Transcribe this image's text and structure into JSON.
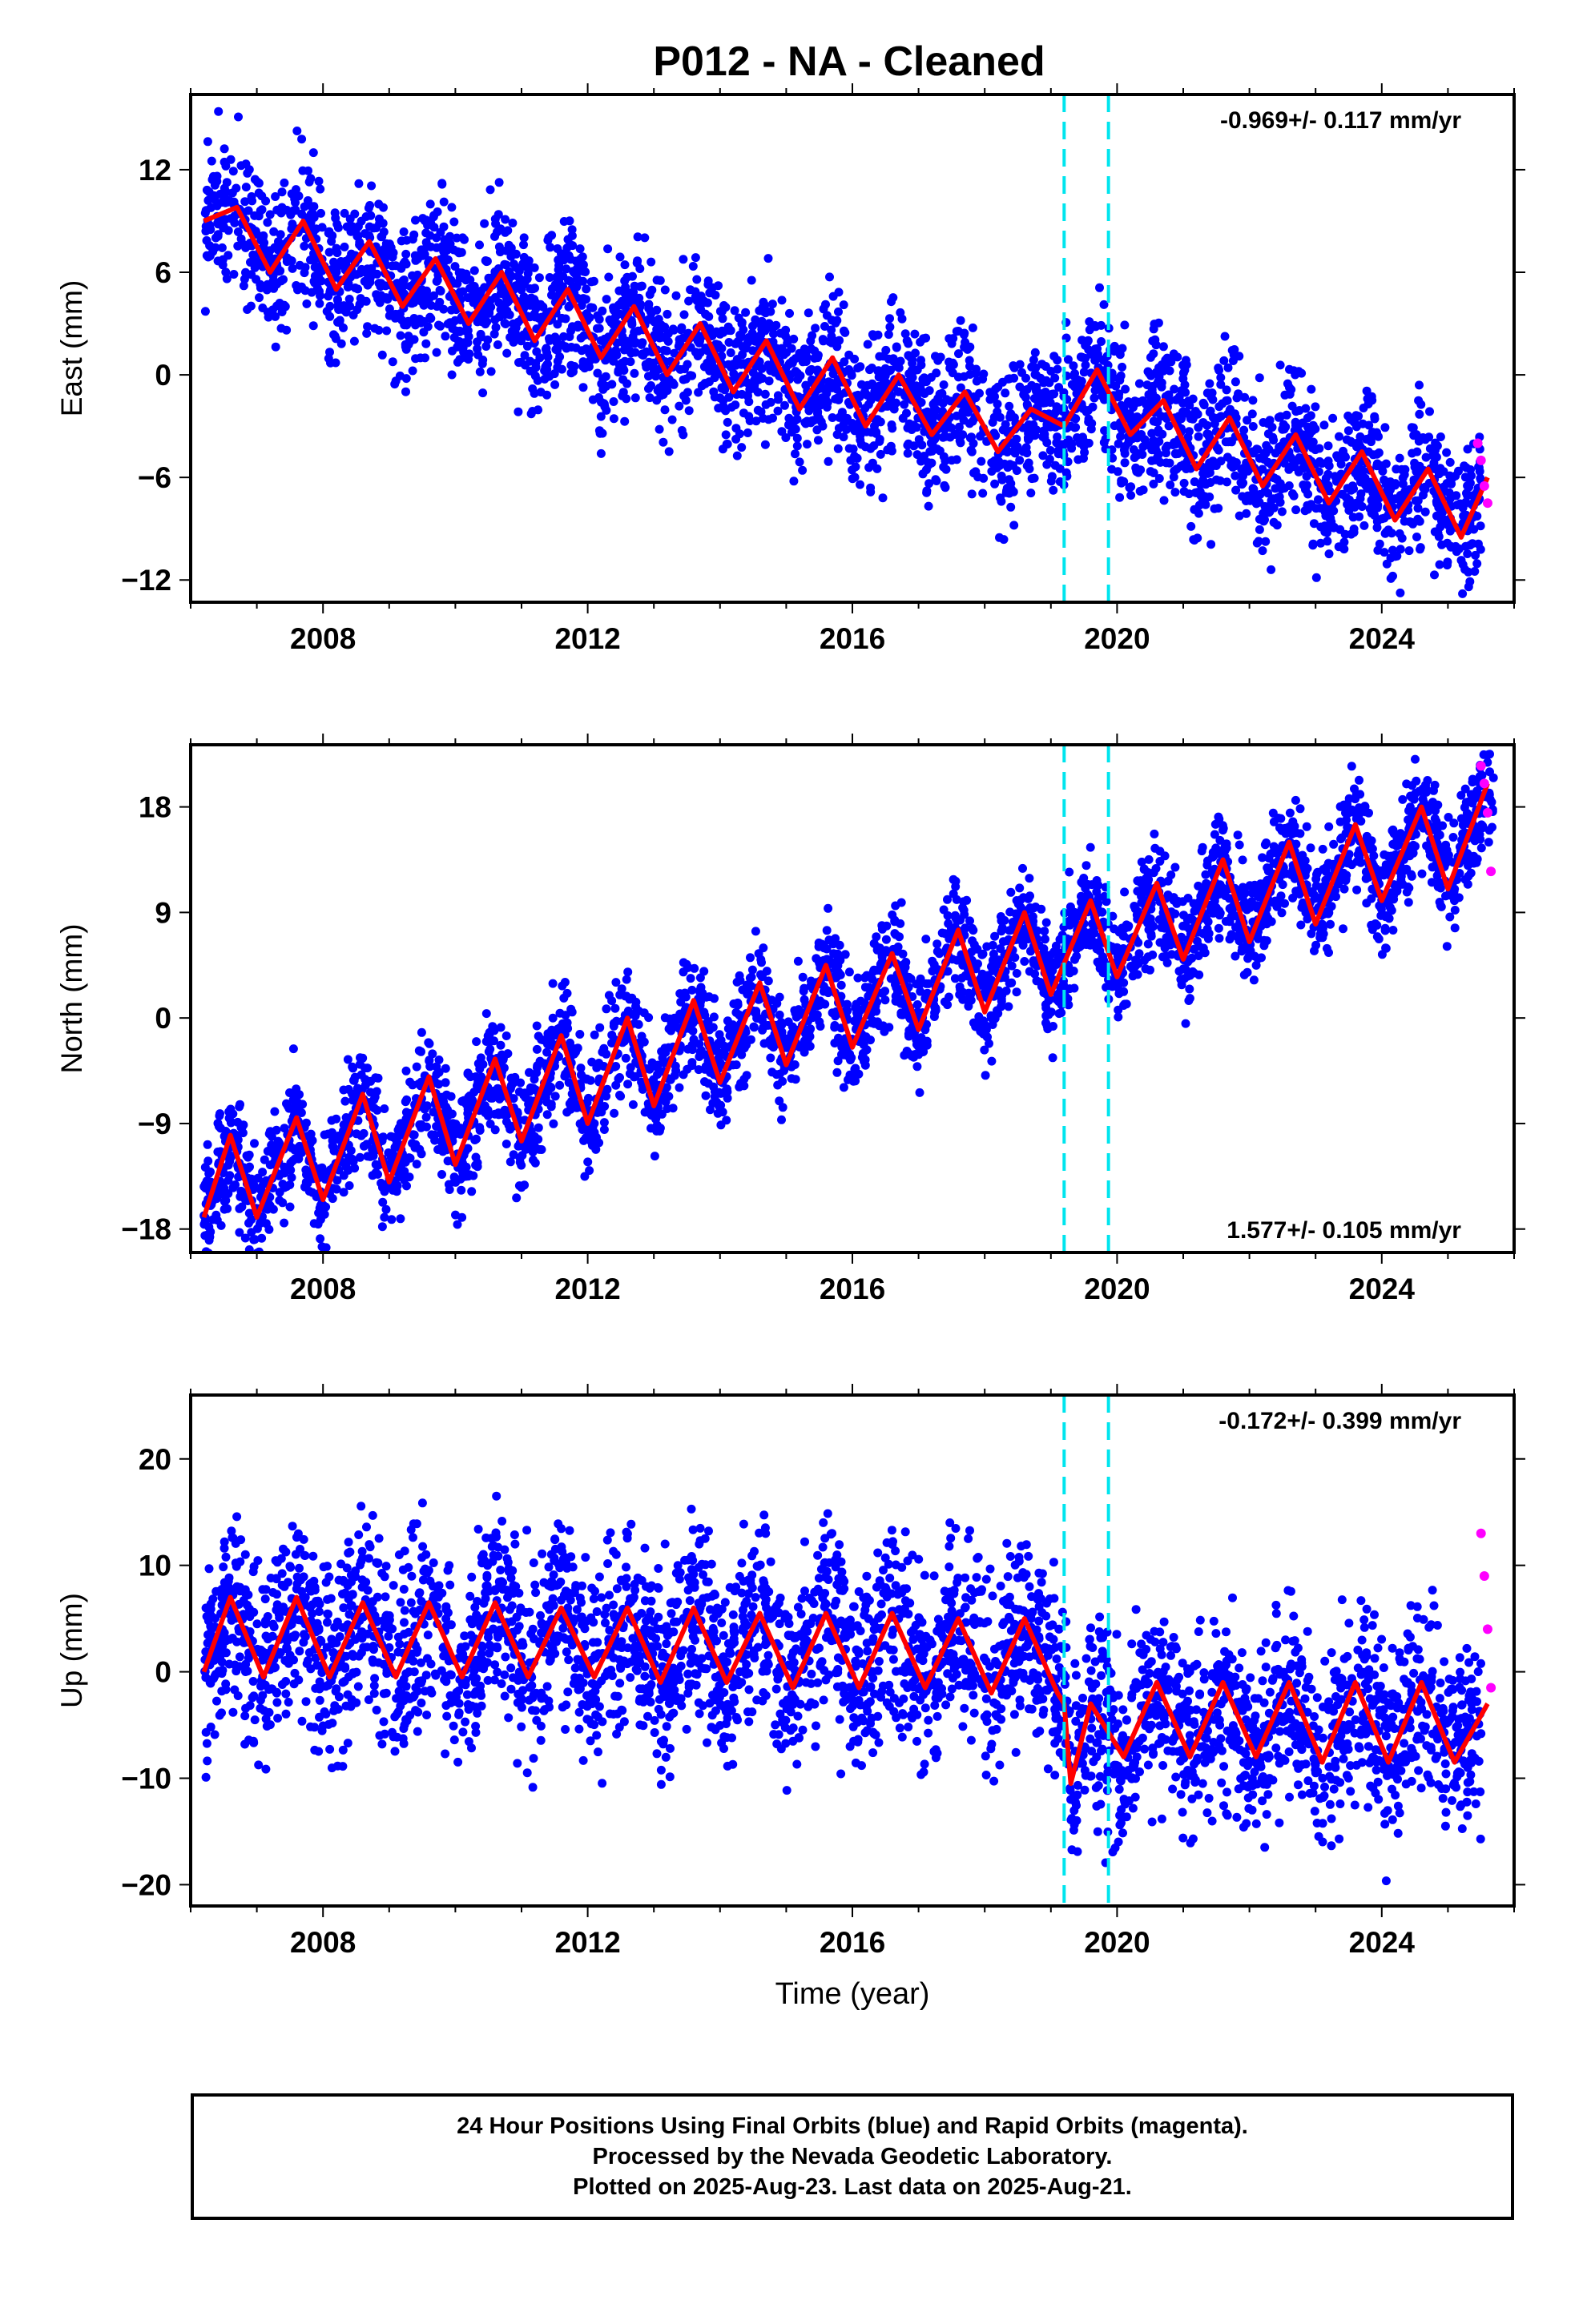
{
  "title": "P012  - NA - Cleaned",
  "colors": {
    "final": "#0000ff",
    "rapid": "#ff00ff",
    "model": "#ff0000",
    "break": "#00e5ee",
    "axis": "#000000"
  },
  "chart_data": [
    {
      "type": "scatter",
      "ylabel": "East (mm)",
      "xlabel": "",
      "xlim": [
        2006.0,
        2026.0
      ],
      "ylim": [
        -13.3,
        16.4
      ],
      "yticks": [
        12,
        6,
        0,
        -6,
        -12
      ],
      "ytick_labels": [
        "12",
        "6",
        "0",
        "−6",
        "−12"
      ],
      "xticks": [
        2008,
        2012,
        2016,
        2020,
        2024
      ],
      "xtick_labels": [
        "2008",
        "2012",
        "2016",
        "2020",
        "2024"
      ],
      "rate_label": "-0.969+/- 0.117 mm/yr",
      "rate_position": "top-right",
      "series": [
        {
          "role": "final",
          "x": [
            2006.3,
            2006.8,
            2007.3,
            2007.8,
            2008.3,
            2008.8,
            2009.3,
            2009.8,
            2010.3,
            2010.8,
            2011.3,
            2011.8,
            2012.3,
            2012.8,
            2013.3,
            2013.8,
            2014.3,
            2014.8,
            2015.3,
            2015.8,
            2016.3,
            2016.8,
            2017.3,
            2017.8,
            2018.3,
            2018.8,
            2019.3,
            2019.8,
            2020.3,
            2020.8,
            2021.3,
            2021.8,
            2022.3,
            2022.8,
            2023.3,
            2023.8,
            2024.3,
            2024.8,
            2025.3
          ],
          "y": [
            8.5,
            9.5,
            6.5,
            8.5,
            5.5,
            7.5,
            4.5,
            6.5,
            3.5,
            5.5,
            2.5,
            4.5,
            1.5,
            3.5,
            0.5,
            2.5,
            -0.5,
            1.5,
            -1.5,
            0.5,
            -2.5,
            -0.5,
            -3.0,
            -1.5,
            -4.0,
            -2.0,
            -3.0,
            0.0,
            -2.5,
            -1.5,
            -4.5,
            -2.5,
            -6.0,
            -3.5,
            -7.0,
            -4.5,
            -8.0,
            -5.5,
            -9.0
          ]
        },
        {
          "role": "rapid",
          "x": [
            2025.45,
            2025.5,
            2025.55,
            2025.6
          ],
          "y": [
            -4.0,
            -5.0,
            -6.5,
            -7.5
          ]
        },
        {
          "role": "model",
          "x": [
            2006.2,
            2006.7,
            2007.2,
            2007.7,
            2008.2,
            2008.7,
            2009.2,
            2009.7,
            2010.2,
            2010.7,
            2011.2,
            2011.7,
            2012.2,
            2012.7,
            2013.2,
            2013.7,
            2014.2,
            2014.7,
            2015.2,
            2015.7,
            2016.2,
            2016.7,
            2017.2,
            2017.7,
            2018.2,
            2018.7,
            2019.2,
            2019.7,
            2020.2,
            2020.7,
            2021.2,
            2021.7,
            2022.2,
            2022.7,
            2023.2,
            2023.7,
            2024.2,
            2024.7,
            2025.2,
            2025.6
          ],
          "y": [
            9.0,
            9.8,
            6.0,
            9.0,
            5.0,
            7.8,
            4.0,
            6.8,
            3.0,
            6.0,
            2.0,
            5.0,
            1.0,
            4.0,
            0.0,
            3.0,
            -1.0,
            2.0,
            -2.0,
            1.0,
            -3.0,
            0.0,
            -3.5,
            -1.0,
            -4.5,
            -2.0,
            -3.0,
            0.3,
            -3.5,
            -1.5,
            -5.5,
            -2.5,
            -6.5,
            -3.5,
            -7.5,
            -4.5,
            -8.5,
            -5.5,
            -9.5,
            -6.0
          ]
        }
      ],
      "breaks": [
        2019.2,
        2019.87
      ]
    },
    {
      "type": "scatter",
      "ylabel": "North (mm)",
      "xlabel": "",
      "xlim": [
        2006.0,
        2026.0
      ],
      "ylim": [
        -20.0,
        23.3
      ],
      "yticks": [
        18,
        9,
        0,
        -9,
        -18
      ],
      "ytick_labels": [
        "18",
        "9",
        "0",
        "−9",
        "−18"
      ],
      "xticks": [
        2008,
        2012,
        2016,
        2020,
        2024
      ],
      "xtick_labels": [
        "2008",
        "2012",
        "2016",
        "2020",
        "2024"
      ],
      "rate_label": "1.577+/- 0.105 mm/yr",
      "rate_position": "bottom-right",
      "series": [
        {
          "role": "final",
          "x": [
            2006.3,
            2006.7,
            2007.2,
            2007.6,
            2008.1,
            2008.6,
            2009.1,
            2009.6,
            2010.1,
            2010.6,
            2011.1,
            2011.6,
            2012.1,
            2012.6,
            2013.1,
            2013.6,
            2014.1,
            2014.6,
            2015.1,
            2015.6,
            2016.1,
            2016.6,
            2017.1,
            2017.6,
            2018.1,
            2018.6,
            2019.1,
            2019.6,
            2020.1,
            2020.6,
            2021.1,
            2021.6,
            2022.1,
            2022.6,
            2023.1,
            2023.6,
            2024.1,
            2024.6,
            2025.1,
            2025.5
          ],
          "y": [
            -16,
            -10,
            -16,
            -9,
            -15,
            -7,
            -13,
            -6,
            -12,
            -4,
            -10,
            -2,
            -9,
            -1,
            -7,
            1,
            -5,
            2,
            -4,
            4,
            -2,
            5,
            -1,
            7,
            0,
            9,
            2,
            10,
            3,
            11,
            5,
            13,
            7,
            15,
            8,
            16,
            10,
            18,
            11,
            20
          ]
        },
        {
          "role": "rapid",
          "x": [
            2025.5,
            2025.55,
            2025.6,
            2025.65
          ],
          "y": [
            21.5,
            20.0,
            17.5,
            12.5
          ]
        },
        {
          "role": "model",
          "x": [
            2006.2,
            2006.6,
            2007.0,
            2007.6,
            2008.0,
            2008.6,
            2009.0,
            2009.6,
            2010.0,
            2010.6,
            2011.0,
            2011.6,
            2012.0,
            2012.6,
            2013.0,
            2013.6,
            2014.0,
            2014.6,
            2015.0,
            2015.6,
            2016.0,
            2016.6,
            2017.0,
            2017.6,
            2018.0,
            2018.6,
            2019.0,
            2019.6,
            2020.0,
            2020.6,
            2021.0,
            2021.6,
            2022.0,
            2022.6,
            2023.0,
            2023.6,
            2024.0,
            2024.6,
            2025.0,
            2025.6
          ],
          "y": [
            -17.0,
            -10.0,
            -17.0,
            -8.5,
            -15.5,
            -6.5,
            -14.0,
            -5.0,
            -12.5,
            -3.5,
            -10.5,
            -1.5,
            -9.0,
            0.0,
            -7.5,
            1.5,
            -5.5,
            3.0,
            -4.0,
            4.5,
            -2.5,
            5.5,
            -1.0,
            7.5,
            0.5,
            9.0,
            2.0,
            10.0,
            3.5,
            11.5,
            5.0,
            13.5,
            6.5,
            15.0,
            8.0,
            16.5,
            10.0,
            18.0,
            11.0,
            20.0
          ]
        }
      ],
      "breaks": [
        2019.2,
        2019.87
      ]
    },
    {
      "type": "scatter",
      "ylabel": "Up (mm)",
      "xlabel": "Time (year)",
      "xlim": [
        2006.0,
        2026.0
      ],
      "ylim": [
        -22.0,
        26.0
      ],
      "yticks": [
        20,
        10,
        0,
        -10,
        -20
      ],
      "ytick_labels": [
        "20",
        "10",
        "0",
        "−10",
        "−20"
      ],
      "xticks": [
        2008,
        2012,
        2016,
        2020,
        2024
      ],
      "xtick_labels": [
        "2008",
        "2012",
        "2016",
        "2020",
        "2024"
      ],
      "rate_label": "-0.172+/- 0.399 mm/yr",
      "rate_position": "top-right",
      "series": [
        {
          "role": "final",
          "x": [
            2006.3,
            2006.7,
            2007.3,
            2007.7,
            2008.3,
            2008.7,
            2009.3,
            2009.7,
            2010.3,
            2010.7,
            2011.3,
            2011.7,
            2012.3,
            2012.7,
            2013.3,
            2013.7,
            2014.3,
            2014.7,
            2015.3,
            2015.7,
            2016.3,
            2016.7,
            2017.3,
            2017.7,
            2018.3,
            2018.7,
            2019.3,
            2019.7,
            2020.3,
            2020.7,
            2021.3,
            2021.7,
            2022.3,
            2022.7,
            2023.3,
            2023.7,
            2024.3,
            2024.7,
            2025.3
          ],
          "y": [
            1,
            8,
            -2,
            7,
            -1,
            6,
            0,
            6,
            -1,
            6,
            -2,
            6,
            0,
            7,
            -1,
            6,
            0,
            6,
            -1,
            5,
            0,
            5,
            -1,
            6,
            0,
            5,
            -12,
            -3,
            -8,
            0,
            -7,
            -1,
            -8,
            -2,
            -9,
            -2,
            -8,
            -1,
            -9
          ]
        },
        {
          "role": "rapid",
          "x": [
            2025.5,
            2025.55,
            2025.6,
            2025.65
          ],
          "y": [
            13.0,
            9.0,
            4.0,
            -1.5
          ]
        },
        {
          "role": "model",
          "x": [
            2006.2,
            2006.6,
            2007.1,
            2007.6,
            2008.1,
            2008.6,
            2009.1,
            2009.6,
            2010.1,
            2010.6,
            2011.1,
            2011.6,
            2012.1,
            2012.6,
            2013.1,
            2013.6,
            2014.1,
            2014.6,
            2015.1,
            2015.6,
            2016.1,
            2016.6,
            2017.1,
            2017.6,
            2018.1,
            2018.6,
            2019.1,
            2019.2,
            2019.3,
            2019.6,
            2020.1,
            2020.6,
            2021.1,
            2021.6,
            2022.1,
            2022.6,
            2023.1,
            2023.6,
            2024.1,
            2024.6,
            2025.1,
            2025.6
          ],
          "y": [
            0.0,
            7.0,
            -0.5,
            7.0,
            -0.5,
            6.5,
            -0.5,
            6.5,
            -0.5,
            6.5,
            -0.5,
            6.0,
            -0.5,
            6.0,
            -1.0,
            6.0,
            -1.0,
            5.5,
            -1.5,
            5.5,
            -1.5,
            5.5,
            -1.5,
            5.0,
            -2.0,
            5.0,
            -2.0,
            -3.0,
            -10.5,
            -3.0,
            -8.0,
            -1.0,
            -8.0,
            -1.0,
            -8.0,
            -1.0,
            -8.5,
            -1.0,
            -8.5,
            -1.0,
            -8.5,
            -3.0
          ]
        }
      ],
      "breaks": [
        2019.2,
        2019.87
      ]
    }
  ],
  "footer": {
    "line1": "24 Hour Positions Using Final Orbits (blue) and Rapid Orbits (magenta).",
    "line2": "Processed by the Nevada Geodetic Laboratory.",
    "line3": "Plotted on 2025-Aug-23. Last data on 2025-Aug-21."
  }
}
